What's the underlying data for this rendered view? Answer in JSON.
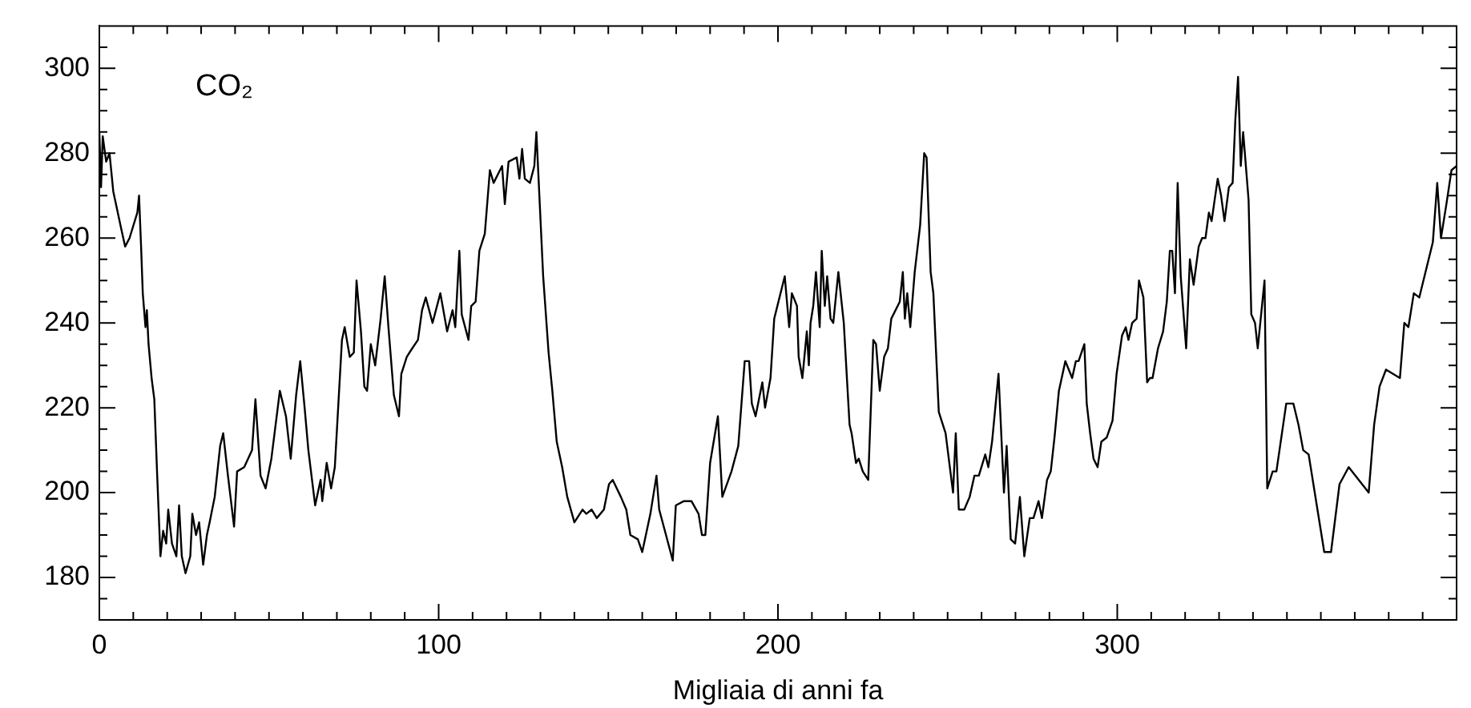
{
  "chart_data": {
    "type": "line",
    "xlabel": "Migliaia di anni fa",
    "annotations": [
      "CO₂"
    ],
    "xlim": [
      0,
      400
    ],
    "ylim": [
      170,
      310
    ],
    "xticks": [
      0,
      {
        "value": 10,
        "label": null
      },
      {
        "value": 20,
        "label": null
      },
      {
        "value": 30,
        "label": null
      },
      {
        "value": 40,
        "label": null
      },
      {
        "value": 50,
        "label": null
      },
      {
        "value": 60,
        "label": null
      },
      {
        "value": 70,
        "label": null
      },
      {
        "value": 80,
        "label": null
      },
      {
        "value": 90,
        "label": null
      },
      100,
      {
        "value": 110,
        "label": null
      },
      {
        "value": 120,
        "label": null
      },
      {
        "value": 130,
        "label": null
      },
      {
        "value": 140,
        "label": null
      },
      {
        "value": 150,
        "label": null
      },
      {
        "value": 160,
        "label": null
      },
      {
        "value": 170,
        "label": null
      },
      {
        "value": 180,
        "label": null
      },
      {
        "value": 190,
        "label": null
      },
      200,
      {
        "value": 210,
        "label": null
      },
      {
        "value": 220,
        "label": null
      },
      {
        "value": 230,
        "label": null
      },
      {
        "value": 240,
        "label": null
      },
      {
        "value": 250,
        "label": null
      },
      {
        "value": 260,
        "label": null
      },
      {
        "value": 270,
        "label": null
      },
      {
        "value": 280,
        "label": null
      },
      {
        "value": 290,
        "label": null
      },
      300,
      {
        "value": 310,
        "label": null
      },
      {
        "value": 320,
        "label": null
      },
      {
        "value": 330,
        "label": null
      },
      {
        "value": 340,
        "label": null
      },
      {
        "value": 350,
        "label": null
      },
      {
        "value": 360,
        "label": null
      },
      {
        "value": 370,
        "label": null
      },
      {
        "value": 380,
        "label": null
      },
      {
        "value": 390,
        "label": null
      }
    ],
    "yticks": [
      {
        "value": 175,
        "label": null
      },
      180,
      {
        "value": 185,
        "label": null
      },
      {
        "value": 190,
        "label": null
      },
      {
        "value": 195,
        "label": null
      },
      200,
      {
        "value": 205,
        "label": null
      },
      {
        "value": 210,
        "label": null
      },
      {
        "value": 215,
        "label": null
      },
      220,
      {
        "value": 225,
        "label": null
      },
      {
        "value": 230,
        "label": null
      },
      {
        "value": 235,
        "label": null
      },
      240,
      {
        "value": 245,
        "label": null
      },
      {
        "value": 250,
        "label": null
      },
      {
        "value": 255,
        "label": null
      },
      260,
      {
        "value": 265,
        "label": null
      },
      {
        "value": 270,
        "label": null
      },
      {
        "value": 275,
        "label": null
      },
      280,
      {
        "value": 285,
        "label": null
      },
      {
        "value": 290,
        "label": null
      },
      {
        "value": 295,
        "label": null
      },
      300,
      {
        "value": 305,
        "label": null
      }
    ],
    "grid": false,
    "legend": false,
    "marker": "none",
    "line_style": "solid",
    "series": [
      {
        "color": "#000000",
        "x": [
          0,
          0.5,
          1,
          2,
          3,
          4.1,
          6.5,
          7.6,
          8.9,
          11.2,
          11.7,
          12.3,
          12.8,
          13.6,
          14,
          14.5,
          15.4,
          16.2,
          17,
          18,
          18.8,
          19.7,
          20.3,
          21.4,
          22.7,
          23.5,
          24.3,
          25.4,
          26.8,
          27.4,
          28.5,
          29.4,
          30.6,
          31.7,
          32.5,
          34,
          35.6,
          36.5,
          37.9,
          39.7,
          40.6,
          42.7,
          45,
          46,
          47.5,
          49,
          50.7,
          53.2,
          55,
          56.4,
          58,
          59.2,
          60.5,
          61.6,
          63.6,
          65.2,
          65.7,
          67,
          68.3,
          69.4,
          71.5,
          72.3,
          73.8,
          75,
          75.8,
          77.1,
          78.1,
          78.9,
          80,
          81.3,
          82.9,
          84.1,
          85.2,
          86.8,
          88.3,
          89,
          90.6,
          92.2,
          93.9,
          95.1,
          96.2,
          98.2,
          100.5,
          102.5,
          104.1,
          104.9,
          106.1,
          106.8,
          108.8,
          109.6,
          110.9,
          112,
          113.6,
          115.1,
          116.2,
          118.7,
          119.5,
          120.6,
          123,
          123.8,
          124.6,
          125.4,
          126.9,
          128.2,
          128.8,
          130.8,
          132.4,
          133.5,
          134.8,
          136.4,
          137.9,
          140,
          142.4,
          143.5,
          145.1,
          146.6,
          148.7,
          150.2,
          151.3,
          153.7,
          155.3,
          156.5,
          158.7,
          160,
          162.4,
          164.2,
          165,
          167,
          169,
          169.9,
          172.3,
          174.5,
          176.6,
          177.6,
          178.6,
          180,
          182.3,
          183.6,
          186.3,
          188.3,
          190.2,
          191.5,
          192.3,
          193.4,
          195.4,
          196.2,
          197.8,
          198.9,
          202,
          203.3,
          204.1,
          205.6,
          206.1,
          207.2,
          208.5,
          209.1,
          209.6,
          210.4,
          211.2,
          212.3,
          212.9,
          213.8,
          214.5,
          215.5,
          216.3,
          217.8,
          219.4,
          221.1,
          221.7,
          223,
          223.8,
          225,
          226.6,
          228.1,
          228.9,
          230,
          231.3,
          232.4,
          233.4,
          235.9,
          236.8,
          237.4,
          238.1,
          239,
          240.3,
          241.9,
          243.1,
          243.8,
          245,
          245.8,
          247.4,
          249.4,
          251.6,
          252.4,
          253.3,
          254.9,
          256.5,
          257.9,
          259.2,
          261.1,
          262,
          263.1,
          265,
          266.6,
          267.4,
          268.6,
          269.9,
          271.3,
          272.6,
          274.2,
          275.3,
          276.8,
          277.8,
          279.3,
          280.4,
          281.5,
          282.8,
          284.7,
          286.7,
          287.8,
          288.6,
          290.3,
          291,
          292,
          293,
          294.2,
          295.3,
          296.9,
          298.6,
          299.8,
          301.4,
          302.5,
          303.3,
          304.4,
          305.7,
          306.4,
          307.7,
          308.8,
          309.6,
          310.4,
          312,
          313.5,
          314.6,
          315.5,
          316.2,
          317,
          317.8,
          318.7,
          320.3,
          321.4,
          322.5,
          324,
          325,
          326,
          327,
          327.8,
          329.6,
          330.6,
          331.6,
          332.9,
          334,
          334.8,
          335.6,
          336.4,
          337.1,
          338.7,
          339.5,
          340.6,
          341.4,
          343.4,
          344.2,
          345.8,
          346.9,
          349.8,
          351.9,
          353.4,
          354.8,
          356.4,
          361,
          363,
          365.5,
          368.2,
          374.1,
          375.7,
          377.3,
          379.2,
          383.3,
          384.6,
          385.8,
          387.4,
          389,
          393,
          394.3,
          395.4,
          397,
          398.5,
          400
        ],
        "values": [
          285,
          272,
          284,
          278,
          280,
          271,
          262,
          258,
          260,
          266,
          270,
          258,
          247,
          239,
          243,
          235,
          227,
          222,
          205,
          185,
          191,
          188,
          196,
          188,
          185,
          197,
          185,
          181,
          185,
          195,
          190,
          193,
          183,
          190,
          193,
          199,
          211,
          214,
          204,
          192,
          205,
          206,
          210,
          222,
          204,
          201,
          208,
          224,
          218,
          208,
          223,
          231,
          220,
          210,
          197,
          203,
          198,
          207,
          201,
          206,
          236,
          239,
          232,
          233,
          250,
          238,
          225,
          224,
          235,
          230,
          241,
          251,
          239,
          223,
          218,
          228,
          232,
          234,
          236,
          243,
          246,
          240,
          247,
          238,
          243,
          239,
          257,
          242,
          236,
          244,
          245,
          257,
          261,
          276,
          273,
          277,
          268,
          278,
          279,
          274,
          281,
          274,
          273,
          277,
          285,
          251,
          233,
          224,
          212,
          206,
          199,
          193,
          196,
          195,
          196,
          194,
          196,
          202,
          203,
          199,
          196,
          190,
          189,
          186,
          195,
          204,
          196,
          190,
          184,
          197,
          198,
          198,
          195,
          190,
          190,
          207,
          218,
          199,
          205,
          211,
          231,
          231,
          221,
          218,
          226,
          220,
          227,
          241,
          251,
          239,
          247,
          244,
          232,
          227,
          238,
          230,
          240,
          244,
          252,
          239,
          257,
          244,
          251,
          241,
          240,
          252,
          240,
          216,
          214,
          207,
          208,
          205,
          203,
          236,
          235,
          224,
          232,
          234,
          241,
          245,
          252,
          241,
          247,
          239,
          252,
          263,
          280,
          279,
          252,
          247,
          219,
          214,
          200,
          214,
          196,
          196,
          199,
          204,
          204,
          209,
          206,
          212,
          228,
          200,
          211,
          189,
          188,
          199,
          185,
          194,
          194,
          198,
          194,
          203,
          205,
          213,
          224,
          231,
          227,
          231,
          231,
          235,
          221,
          214,
          208,
          206,
          212,
          213,
          217,
          228,
          237,
          239,
          236,
          240,
          241,
          250,
          246,
          226,
          227,
          227,
          234,
          238,
          245,
          257,
          257,
          247,
          273,
          251,
          234,
          255,
          249,
          258,
          260,
          260,
          266,
          264,
          274,
          270,
          264,
          272,
          273,
          288,
          298,
          277,
          285,
          269,
          242,
          240,
          234,
          250,
          201,
          205,
          205,
          221,
          221,
          216,
          210,
          209,
          186,
          186,
          202,
          206,
          200,
          216,
          225,
          229,
          227,
          240,
          239,
          247,
          246,
          259,
          273,
          260,
          268,
          276,
          277
        ]
      }
    ]
  }
}
